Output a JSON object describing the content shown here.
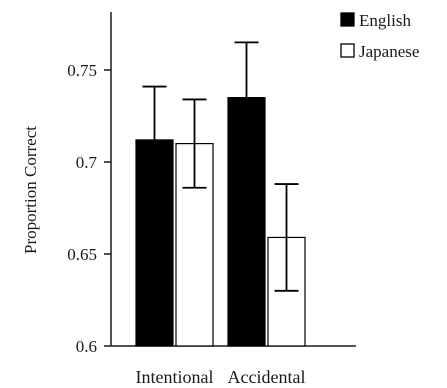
{
  "chart_data": {
    "type": "bar",
    "categories": [
      "Intentional",
      "Accidental"
    ],
    "series": [
      {
        "name": "English",
        "color": "#000000",
        "values": [
          0.712,
          0.735
        ],
        "error": [
          0.029,
          0.03
        ]
      },
      {
        "name": "Japanese",
        "color": "#ffffff",
        "values": [
          0.71,
          0.659
        ],
        "error": [
          0.024,
          0.029
        ]
      }
    ],
    "title": "",
    "xlabel": "",
    "ylabel": "Proportion Correct",
    "ylim": [
      0.6,
      0.77
    ],
    "yticks": [
      {
        "value": 0.6,
        "label": "0.6"
      },
      {
        "value": 0.65,
        "label": "0.65"
      },
      {
        "value": 0.7,
        "label": "0.7"
      },
      {
        "value": 0.75,
        "label": "0.75"
      }
    ],
    "grid": false,
    "legend_position": "top-right",
    "has_error_bars": true
  }
}
